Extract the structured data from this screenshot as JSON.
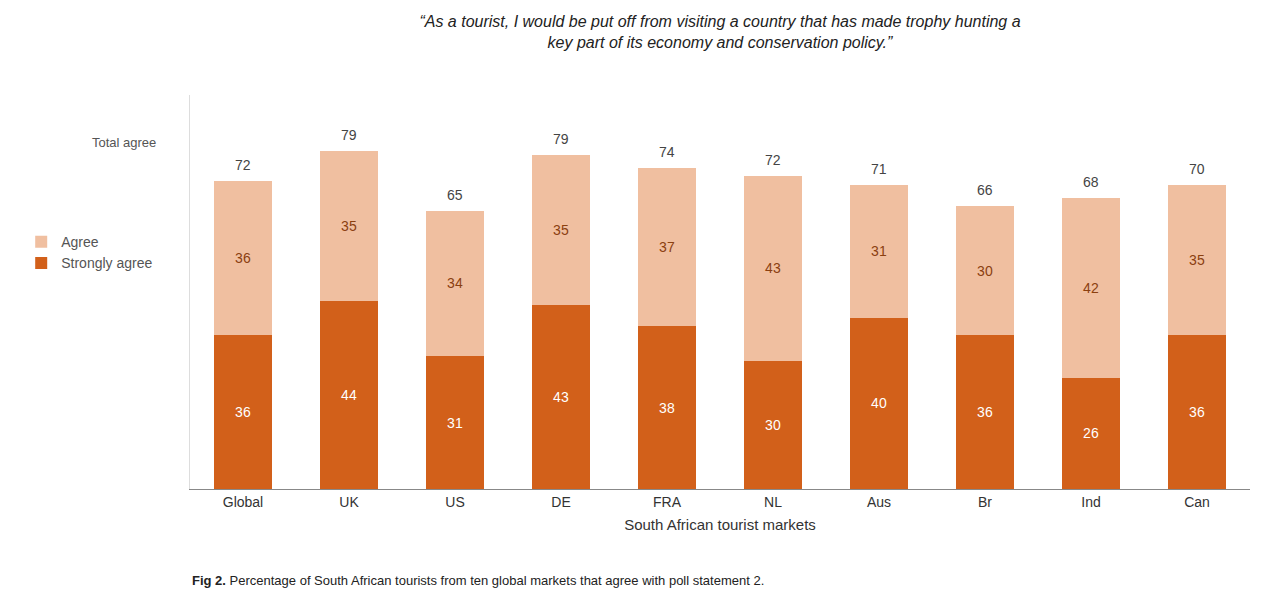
{
  "chart_data": {
    "type": "bar",
    "title": "“As a tourist, I would be put off from visiting a country that has made trophy hunting a\nkey part of its economy and conservation policy.”",
    "xlabel": "South African tourist markets",
    "categories": [
      "Global",
      "UK",
      "US",
      "DE",
      "FRA",
      "NL",
      "Aus",
      "Br",
      "Ind",
      "Can"
    ],
    "series": [
      {
        "name": "Strongly agree",
        "color": "#D2601A",
        "values": [
          36,
          44,
          31,
          43,
          38,
          30,
          40,
          36,
          26,
          36
        ]
      },
      {
        "name": "Agree",
        "color": "#F0BFA0",
        "values": [
          36,
          35,
          34,
          35,
          37,
          43,
          31,
          30,
          42,
          35
        ]
      }
    ],
    "totals_name": "Total agree",
    "totals": [
      72,
      79,
      65,
      79,
      74,
      72,
      71,
      66,
      68,
      70
    ],
    "ylim": [
      0,
      92
    ],
    "stacked": true,
    "data_labels": true,
    "tick_labels": "x",
    "legend": "left",
    "grid": false,
    "caption_label": "Fig 2.",
    "caption": "Percentage of South African tourists from ten global markets that agree with poll statement 2."
  }
}
